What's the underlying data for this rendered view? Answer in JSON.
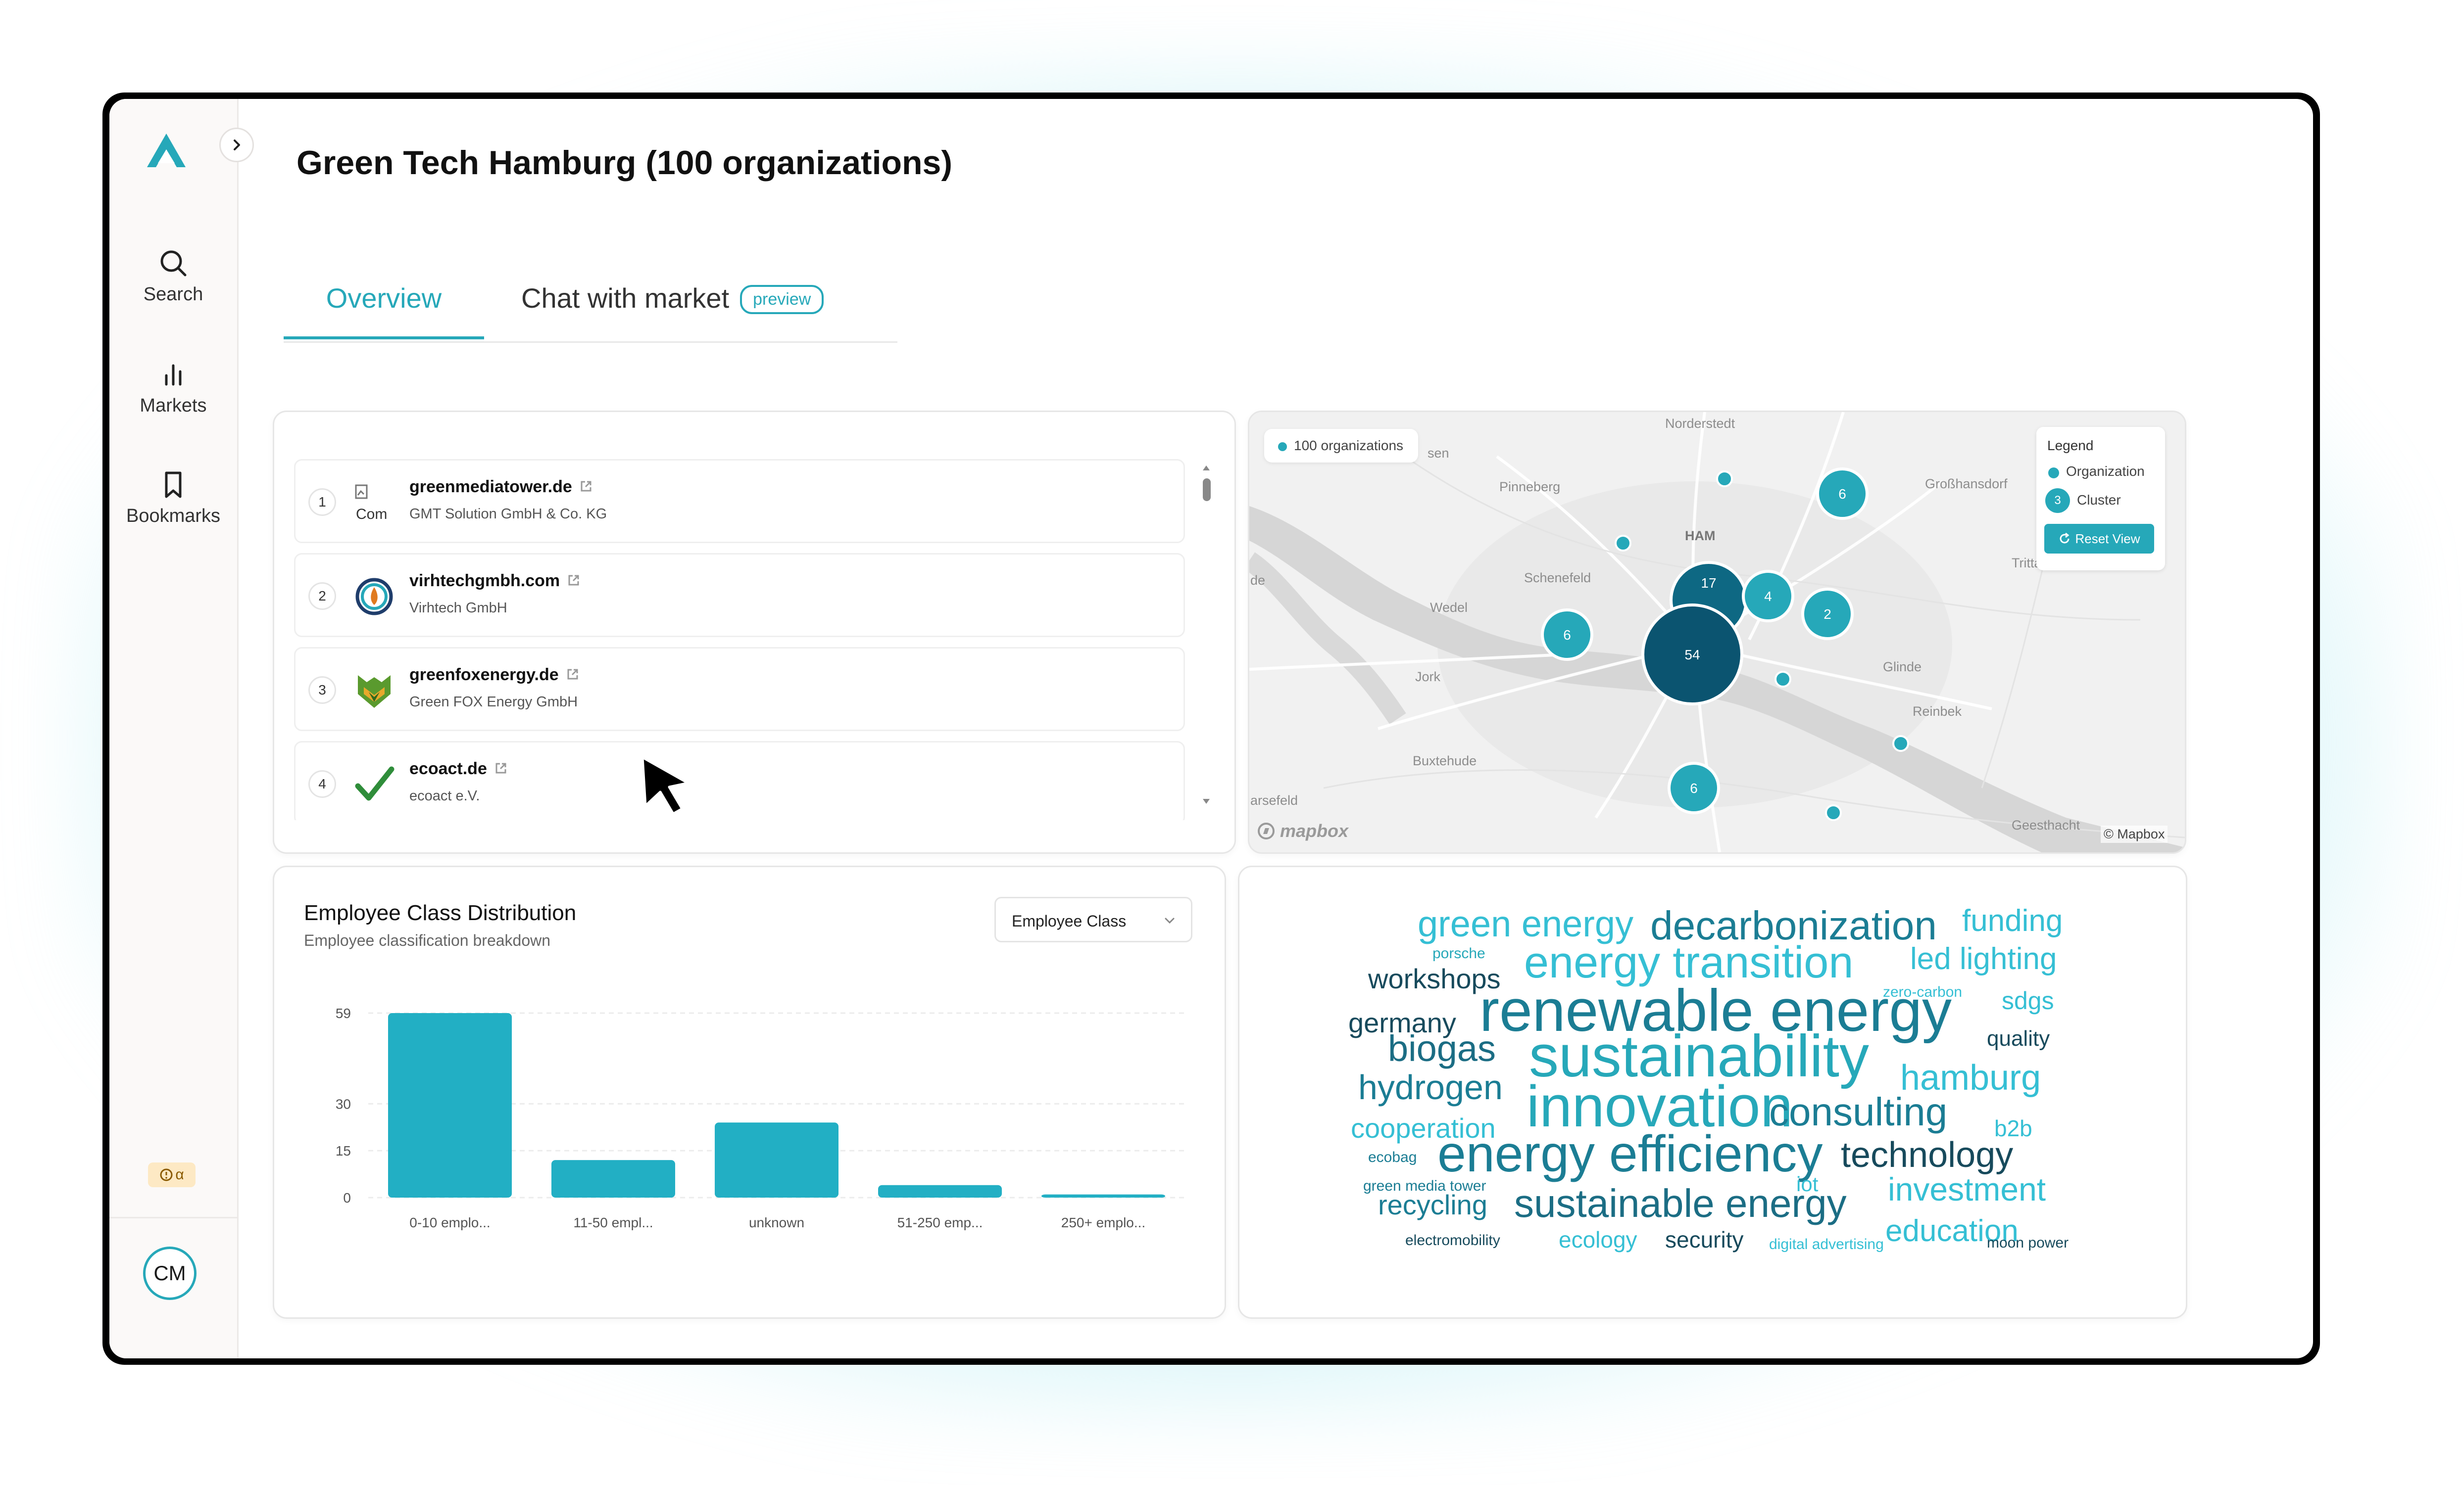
{
  "page": {
    "title": "Green Tech Hamburg (100 organizations)"
  },
  "sidebar": {
    "items": [
      {
        "label": "Search",
        "icon": "search-icon"
      },
      {
        "label": "Markets",
        "icon": "bar-chart-icon"
      },
      {
        "label": "Bookmarks",
        "icon": "bookmark-icon"
      }
    ],
    "badge": "α",
    "avatar": "CM"
  },
  "tabs": {
    "overview": "Overview",
    "chat": "Chat with market",
    "preview_badge": "preview"
  },
  "organizations": [
    {
      "rank": "1",
      "domain": "greenmediatower.de",
      "name": "GMT Solution GmbH & Co. KG",
      "logo_text": "Com"
    },
    {
      "rank": "2",
      "domain": "virhtechgmbh.com",
      "name": "Virhtech GmbH",
      "logo_text": ""
    },
    {
      "rank": "3",
      "domain": "greenfoxenergy.de",
      "name": "Green FOX Energy GmbH",
      "logo_text": ""
    },
    {
      "rank": "4",
      "domain": "ecoact.de",
      "name": "ecoact e.V.",
      "logo_text": ""
    }
  ],
  "map": {
    "count_label": "100 organizations",
    "legend": {
      "title": "Legend",
      "organization": "Organization",
      "cluster": "Cluster",
      "cluster_sample": "3",
      "reset": "Reset View"
    },
    "places": [
      "Norderstedt",
      "Pinneberg",
      "Großhansdorf",
      "HAM",
      "Schenefeld",
      "Wedel",
      "Trittau",
      "Glinde",
      "Jork",
      "Reinbek",
      "Buxtehude",
      "Geesthacht",
      "arsefeld",
      "sen",
      "de"
    ],
    "clusters": [
      {
        "label": "6"
      },
      {
        "label": "17"
      },
      {
        "label": "4"
      },
      {
        "label": "2"
      },
      {
        "label": "6"
      },
      {
        "label": "54"
      },
      {
        "label": "6"
      }
    ],
    "attribution": "© Mapbox",
    "logo": "mapbox",
    "colors": {
      "organization": "#26a8b9",
      "cluster_large": "#0b5470"
    }
  },
  "chart_data": {
    "type": "bar",
    "title": "Employee Class Distribution",
    "subtitle": "Employee classification breakdown",
    "categories": [
      "0-10 emplo...",
      "11-50 empl...",
      "unknown",
      "51-250 emp...",
      "250+ emplo..."
    ],
    "values": [
      59,
      12,
      24,
      4,
      1
    ],
    "yticks": [
      0,
      15,
      30,
      59
    ],
    "ylim": [
      0,
      59
    ],
    "grid": true,
    "color": "#22afc4",
    "select_label": "Employee Class"
  },
  "word_cloud": {
    "words": [
      {
        "text": "green energy",
        "color": "#35bfd4"
      },
      {
        "text": "decarbonization",
        "color": "#1b7d94"
      },
      {
        "text": "funding",
        "color": "#35bfd4"
      },
      {
        "text": "porsche",
        "color": "#26a8b9"
      },
      {
        "text": "energy transition",
        "color": "#35bfd4"
      },
      {
        "text": "led lighting",
        "color": "#35bfd4"
      },
      {
        "text": "workshops",
        "color": "#174a5c"
      },
      {
        "text": "zero-carbon",
        "color": "#35bfd4"
      },
      {
        "text": "sdgs",
        "color": "#35bfd4"
      },
      {
        "text": "germany",
        "color": "#174a5c"
      },
      {
        "text": "renewable energy",
        "color": "#1b7d94"
      },
      {
        "text": "quality",
        "color": "#174a5c"
      },
      {
        "text": "biogas",
        "color": "#1b6d84"
      },
      {
        "text": "sustainability",
        "color": "#26a8b9"
      },
      {
        "text": "hamburg",
        "color": "#35bfd4"
      },
      {
        "text": "hydrogen",
        "color": "#1b7d94"
      },
      {
        "text": "innovation",
        "color": "#26a8b9"
      },
      {
        "text": "consulting",
        "color": "#1b7d94"
      },
      {
        "text": "cooperation",
        "color": "#35bfd4"
      },
      {
        "text": "b2b",
        "color": "#35bfd4"
      },
      {
        "text": "ecobag",
        "color": "#1b7d94"
      },
      {
        "text": "energy efficiency",
        "color": "#1b7d94"
      },
      {
        "text": "technology",
        "color": "#174a5c"
      },
      {
        "text": "green media tower",
        "color": "#1b7d94"
      },
      {
        "text": "iot",
        "color": "#35bfd4"
      },
      {
        "text": "investment",
        "color": "#35bfd4"
      },
      {
        "text": "recycling",
        "color": "#1b7d94"
      },
      {
        "text": "sustainable energy",
        "color": "#1b6d84"
      },
      {
        "text": "education",
        "color": "#35bfd4"
      },
      {
        "text": "electromobility",
        "color": "#174a5c"
      },
      {
        "text": "ecology",
        "color": "#35bfd4"
      },
      {
        "text": "security",
        "color": "#174a5c"
      },
      {
        "text": "digital advertising",
        "color": "#35bfd4"
      },
      {
        "text": "moon power",
        "color": "#174a5c"
      }
    ]
  }
}
